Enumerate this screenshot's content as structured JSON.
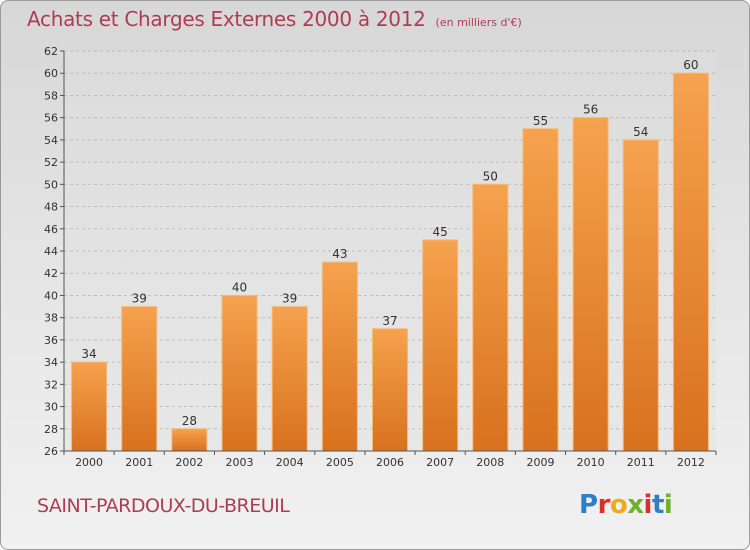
{
  "header": {
    "title": "Achats et Charges Externes 2000 à 2012",
    "subtitle": "(en milliers d'€)"
  },
  "commune": "SAINT-PARDOUX-DU-BREUIL",
  "logo": {
    "text": "Proxiti",
    "letter_colors": [
      "#2e7fc4",
      "#d6322b",
      "#f2a81b",
      "#6fb12e",
      "#d6322b",
      "#2e7fc4",
      "#6fb12e"
    ]
  },
  "colors": {
    "title": "#ad3d52",
    "bar_top": "#f5a24e",
    "bar_bottom": "#d8711e",
    "grid": "#bdbdbd"
  },
  "chart_data": {
    "type": "bar",
    "title": "Achats et Charges Externes 2000 à 2012",
    "subtitle": "(en milliers d'€)",
    "categories": [
      "2000",
      "2001",
      "2002",
      "2003",
      "2004",
      "2005",
      "2006",
      "2007",
      "2008",
      "2009",
      "2010",
      "2011",
      "2012"
    ],
    "values": [
      34,
      39,
      28,
      40,
      39,
      43,
      37,
      45,
      50,
      55,
      56,
      54,
      60
    ],
    "ylim": [
      26,
      62
    ],
    "yticks": [
      26,
      28,
      30,
      32,
      34,
      36,
      38,
      40,
      42,
      44,
      46,
      48,
      50,
      52,
      54,
      56,
      58,
      60,
      62
    ],
    "grid": true,
    "data_labels": true,
    "xlabel": "",
    "ylabel": ""
  }
}
